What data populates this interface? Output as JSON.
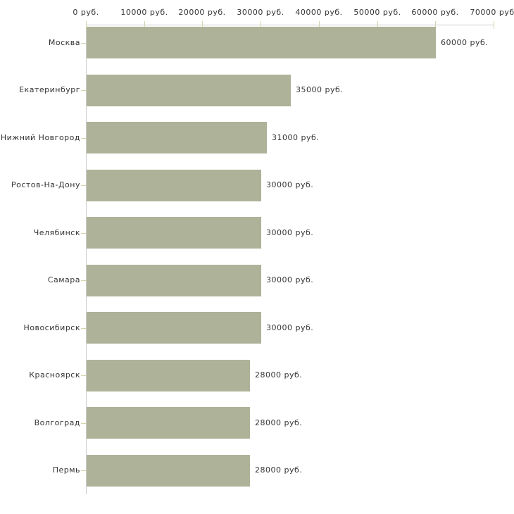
{
  "chart_data": {
    "type": "bar",
    "orientation": "horizontal",
    "title": "",
    "xlabel": "",
    "ylabel": "",
    "grid": false,
    "legend": null,
    "unit": "руб.",
    "categories": [
      "Москва",
      "Екатеринбург",
      "Нижний Новгород",
      "Ростов-На-Дону",
      "Челябинск",
      "Самара",
      "Новосибирск",
      "Красноярск",
      "Волгоград",
      "Пермь"
    ],
    "values": [
      60000,
      35000,
      31000,
      30000,
      30000,
      30000,
      30000,
      28000,
      28000,
      28000
    ],
    "value_labels": [
      "60000 руб.",
      "35000 руб.",
      "31000 руб.",
      "30000 руб.",
      "30000 руб.",
      "30000 руб.",
      "30000 руб.",
      "28000 руб.",
      "28000 руб.",
      "28000 руб."
    ],
    "x_ticks": [
      0,
      10000,
      20000,
      30000,
      40000,
      50000,
      60000,
      70000
    ],
    "x_tick_labels": [
      "0 руб.",
      "10000 руб.",
      "20000 руб.",
      "30000 руб.",
      "40000 руб.",
      "50000 руб.",
      "60000 руб.",
      "70000 руб."
    ],
    "xlim": [
      0,
      70000
    ],
    "colors": {
      "bar": "#adb299",
      "axis": "#cccccc",
      "tick": "#d6d2a8",
      "text": "#333333",
      "background": "#ffffff"
    }
  }
}
